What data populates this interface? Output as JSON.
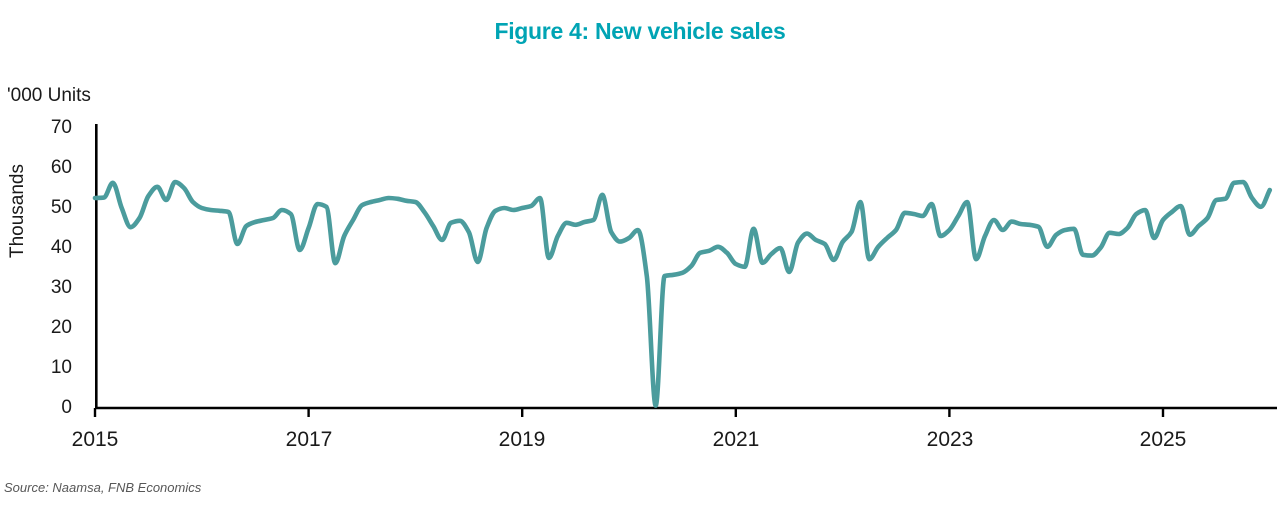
{
  "title": "Figure 4: New vehicle sales",
  "units_label": "'000 Units",
  "source": "Source: Naamsa, FNB Economics",
  "colors": {
    "title_accent": "#00A4B4",
    "line": "#4B9C9D",
    "axis": "#000000",
    "source_text": "#575757"
  },
  "chart_data": {
    "type": "line",
    "title": "Figure 4: New vehicle sales",
    "units": "'000 Units",
    "xlabel": "",
    "ylabel": "Thousands",
    "ylim": [
      0,
      70
    ],
    "y_ticks": [
      0,
      10,
      20,
      30,
      40,
      50,
      60,
      70
    ],
    "x_ticks": [
      2015,
      2017,
      2019,
      2021,
      2023,
      2025
    ],
    "x_tick_labels": [
      "2015",
      "2017",
      "2019",
      "2021",
      "2023",
      "2025"
    ],
    "grid": false,
    "legend_position": "none",
    "frequency": "monthly",
    "x_start": "2015-01",
    "x_end": "2026-01",
    "series": [
      {
        "name": "New vehicle sales",
        "values": [
          52.5,
          52.6,
          56.3,
          50.0,
          45.2,
          47.5,
          53.0,
          55.3,
          52.0,
          56.5,
          55.0,
          51.5,
          50.0,
          49.5,
          49.3,
          49.0,
          41.0,
          45.5,
          46.5,
          47.0,
          47.5,
          49.5,
          48.5,
          39.5,
          45.0,
          51.0,
          50.3,
          36.2,
          43.0,
          47.0,
          50.7,
          51.5,
          52.0,
          52.5,
          52.3,
          51.8,
          51.5,
          49.0,
          45.5,
          42.0,
          46.3,
          46.8,
          44.0,
          36.5,
          45.0,
          49.3,
          50.0,
          49.5,
          50.0,
          50.5,
          52.5,
          37.5,
          43.0,
          46.3,
          45.8,
          46.5,
          47.0,
          53.3,
          44.0,
          41.6,
          42.5,
          44.5,
          33.0,
          0.6,
          33.0,
          33.3,
          33.8,
          35.5,
          38.8,
          39.3,
          40.3,
          38.8,
          36.0,
          35.3,
          44.8,
          36.3,
          38.5,
          40.0,
          34.0,
          41.4,
          43.6,
          42.0,
          41.0,
          37.0,
          41.5,
          44.0,
          51.5,
          37.2,
          40.3,
          42.5,
          44.5,
          48.8,
          48.5,
          48.0,
          51.0,
          43.0,
          44.5,
          48.0,
          51.5,
          37.2,
          43.0,
          47.0,
          44.5,
          46.6,
          46.0,
          45.8,
          45.3,
          40.3,
          43.3,
          44.5,
          44.8,
          38.3,
          38.1,
          40.1,
          43.8,
          43.5,
          45.0,
          48.5,
          49.5,
          42.5,
          47.0,
          49.0,
          50.5,
          43.3,
          45.5,
          47.5,
          52.0,
          52.3,
          56.3,
          56.5,
          52.5,
          50.3,
          54.5
        ]
      }
    ]
  }
}
